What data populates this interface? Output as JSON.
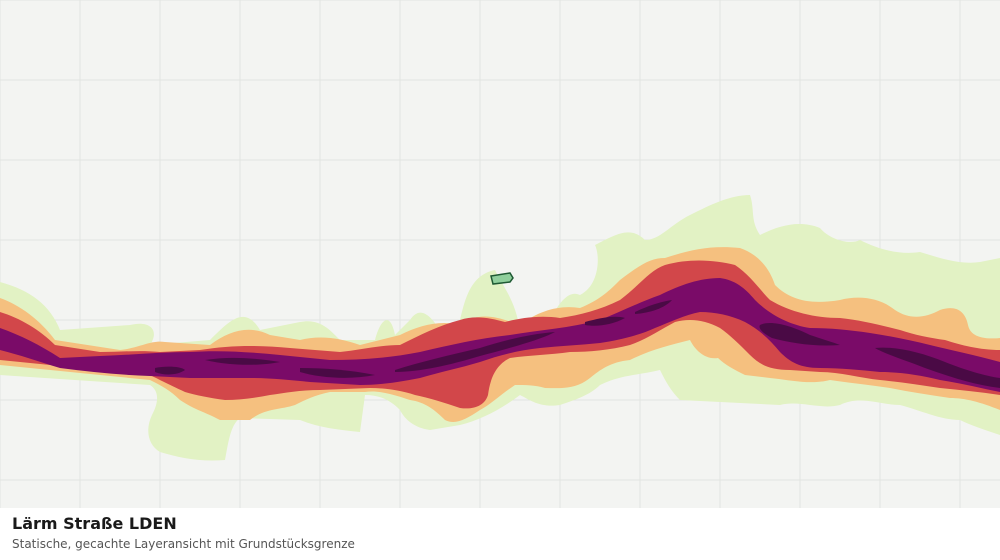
{
  "map": {
    "layer_name": "Lärm Straße LDEN",
    "caption": "Statische, gecachte Layeransicht mit Grundstücksgrenze",
    "background_color": "#f3f4f2",
    "grid_color": "#e2e4e1",
    "noise_band_colors": [
      "#e2f2c4",
      "#f5c07f",
      "#d2474a",
      "#7a0b68",
      "#4a0a45"
    ],
    "parcel_fill": "#8fcf9c",
    "parcel_stroke": "#1f5a34"
  }
}
